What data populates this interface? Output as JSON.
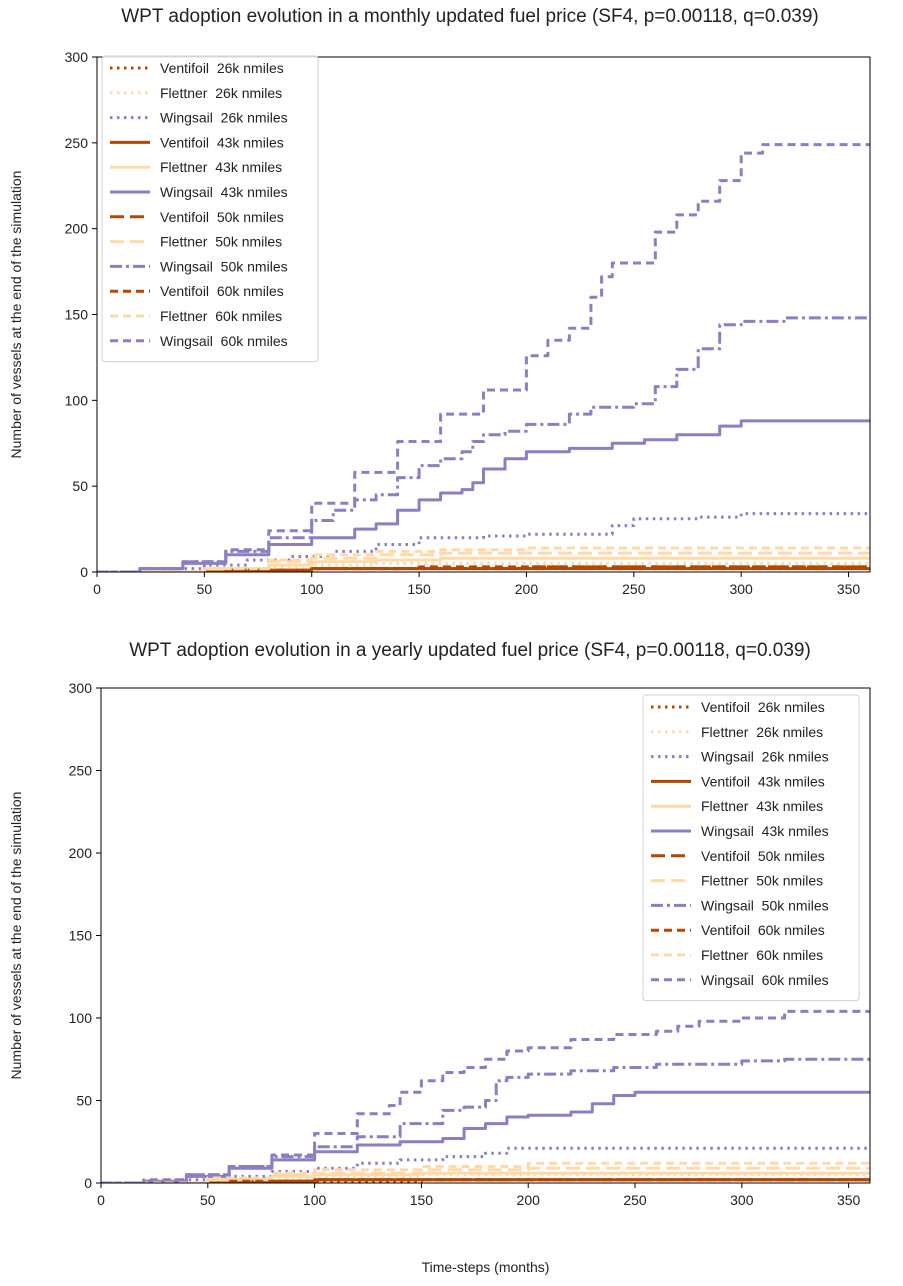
{
  "chart_data": [
    {
      "type": "line",
      "title": "WPT adoption evolution in a monthly updated fuel price (SF4, p=0.00118, q=0.039)",
      "xlabel": "",
      "ylabel": "Number of vessels at the end of the simulation",
      "xlim": [
        0,
        360
      ],
      "ylim": [
        0,
        300
      ],
      "xticks": [
        0,
        50,
        100,
        150,
        200,
        250,
        300,
        350
      ],
      "yticks": [
        0,
        50,
        100,
        150,
        200,
        250,
        300
      ],
      "grid": false,
      "legend_position": "top-left",
      "series": [
        {
          "name": "Ventifoil  26k nmiles",
          "color": "#b34700",
          "style": "dotted",
          "x": [
            0,
            60,
            100,
            150,
            200,
            250,
            300,
            360
          ],
          "y": [
            0,
            1,
            2,
            2,
            2,
            2,
            2,
            2
          ]
        },
        {
          "name": "Flettner  26k nmiles",
          "color": "#ffd9a8",
          "style": "dotted",
          "x": [
            0,
            50,
            80,
            100,
            130,
            160,
            200,
            250,
            300,
            360
          ],
          "y": [
            0,
            1,
            3,
            4,
            5,
            5,
            5,
            5,
            5,
            5
          ]
        },
        {
          "name": "Wingsail  26k nmiles",
          "color": "#8b7fc4",
          "style": "dotted",
          "x": [
            0,
            30,
            50,
            70,
            90,
            110,
            130,
            150,
            180,
            200,
            230,
            240,
            250,
            280,
            300,
            360
          ],
          "y": [
            0,
            2,
            4,
            7,
            9,
            12,
            16,
            20,
            21,
            22,
            22,
            27,
            31,
            32,
            34,
            34
          ]
        },
        {
          "name": "Ventifoil  43k nmiles",
          "color": "#b34700",
          "style": "solid",
          "x": [
            0,
            60,
            100,
            150,
            200,
            360
          ],
          "y": [
            0,
            1,
            2,
            2,
            2,
            2
          ]
        },
        {
          "name": "Flettner  43k nmiles",
          "color": "#ffd9a8",
          "style": "solid",
          "x": [
            0,
            50,
            80,
            100,
            130,
            160,
            200,
            250,
            360
          ],
          "y": [
            0,
            2,
            4,
            6,
            7,
            8,
            8,
            8,
            8
          ]
        },
        {
          "name": "Wingsail  43k nmiles",
          "color": "#8b7fc4",
          "style": "solid",
          "x": [
            0,
            20,
            40,
            60,
            80,
            100,
            120,
            130,
            140,
            150,
            160,
            170,
            175,
            180,
            190,
            200,
            220,
            240,
            255,
            270,
            290,
            300,
            360
          ],
          "y": [
            0,
            2,
            5,
            10,
            16,
            20,
            25,
            28,
            36,
            42,
            46,
            48,
            52,
            60,
            66,
            70,
            72,
            75,
            77,
            80,
            85,
            88,
            88
          ]
        },
        {
          "name": "Ventifoil  50k nmiles",
          "color": "#b34700",
          "style": "longdash",
          "x": [
            0,
            60,
            100,
            150,
            200,
            360
          ],
          "y": [
            0,
            1,
            2,
            2,
            3,
            3
          ]
        },
        {
          "name": "Flettner  50k nmiles",
          "color": "#ffd9a8",
          "style": "longdash",
          "x": [
            0,
            50,
            80,
            100,
            130,
            160,
            200,
            250,
            360
          ],
          "y": [
            0,
            2,
            6,
            8,
            10,
            11,
            11,
            11,
            11
          ]
        },
        {
          "name": "Wingsail  50k nmiles",
          "color": "#8b7fc4",
          "style": "dashdot",
          "x": [
            0,
            20,
            40,
            60,
            80,
            100,
            110,
            120,
            130,
            140,
            150,
            160,
            170,
            175,
            180,
            190,
            200,
            220,
            230,
            250,
            260,
            270,
            280,
            290,
            300,
            320,
            360
          ],
          "y": [
            0,
            2,
            6,
            12,
            20,
            30,
            36,
            42,
            45,
            55,
            62,
            66,
            70,
            76,
            80,
            82,
            86,
            92,
            96,
            98,
            108,
            118,
            130,
            144,
            146,
            148,
            148
          ]
        },
        {
          "name": "Ventifoil  60k nmiles",
          "color": "#b34700",
          "style": "dashed",
          "x": [
            0,
            60,
            100,
            150,
            200,
            360
          ],
          "y": [
            0,
            1,
            2,
            3,
            3,
            3
          ]
        },
        {
          "name": "Flettner  60k nmiles",
          "color": "#ffd9a8",
          "style": "dashed",
          "x": [
            0,
            50,
            80,
            100,
            130,
            160,
            200,
            250,
            360
          ],
          "y": [
            0,
            2,
            7,
            10,
            12,
            13,
            14,
            14,
            14
          ]
        },
        {
          "name": "Wingsail  60k nmiles",
          "color": "#8b7fc4",
          "style": "dashed",
          "x": [
            0,
            20,
            40,
            60,
            80,
            100,
            120,
            140,
            160,
            180,
            200,
            210,
            220,
            230,
            235,
            240,
            260,
            270,
            280,
            290,
            300,
            310,
            360
          ],
          "y": [
            0,
            2,
            6,
            13,
            24,
            40,
            58,
            76,
            92,
            106,
            126,
            135,
            142,
            160,
            172,
            180,
            198,
            208,
            216,
            228,
            244,
            249,
            249
          ]
        }
      ]
    },
    {
      "type": "line",
      "title": "WPT adoption evolution in a yearly updated fuel price (SF4, p=0.00118, q=0.039)",
      "xlabel": "Time-steps (months)",
      "ylabel": "Number of vessels at the end of the simulation",
      "xlim": [
        0,
        360
      ],
      "ylim": [
        0,
        300
      ],
      "xticks": [
        0,
        50,
        100,
        150,
        200,
        250,
        300,
        350
      ],
      "yticks": [
        0,
        50,
        100,
        150,
        200,
        250,
        300
      ],
      "grid": false,
      "legend_position": "top-right",
      "series": [
        {
          "name": "Ventifoil  26k nmiles",
          "color": "#b34700",
          "style": "dotted",
          "x": [
            0,
            60,
            100,
            150,
            200,
            360
          ],
          "y": [
            0,
            1,
            1,
            2,
            2,
            2
          ]
        },
        {
          "name": "Flettner  26k nmiles",
          "color": "#ffd9a8",
          "style": "dotted",
          "x": [
            0,
            50,
            80,
            100,
            150,
            200,
            360
          ],
          "y": [
            0,
            1,
            3,
            4,
            5,
            5,
            5
          ]
        },
        {
          "name": "Wingsail  26k nmiles",
          "color": "#8b7fc4",
          "style": "dotted",
          "x": [
            0,
            30,
            60,
            80,
            100,
            120,
            140,
            160,
            180,
            190,
            200,
            360
          ],
          "y": [
            0,
            2,
            4,
            7,
            9,
            12,
            14,
            16,
            18,
            21,
            21,
            21
          ]
        },
        {
          "name": "Ventifoil  43k nmiles",
          "color": "#b34700",
          "style": "solid",
          "x": [
            0,
            60,
            100,
            150,
            360
          ],
          "y": [
            0,
            1,
            2,
            2,
            2
          ]
        },
        {
          "name": "Flettner  43k nmiles",
          "color": "#ffd9a8",
          "style": "solid",
          "x": [
            0,
            50,
            80,
            100,
            150,
            200,
            360
          ],
          "y": [
            0,
            2,
            4,
            5,
            6,
            6,
            6
          ]
        },
        {
          "name": "Wingsail  43k nmiles",
          "color": "#8b7fc4",
          "style": "solid",
          "x": [
            0,
            20,
            40,
            60,
            80,
            100,
            120,
            140,
            160,
            170,
            180,
            190,
            200,
            220,
            230,
            240,
            250,
            360
          ],
          "y": [
            0,
            1,
            4,
            9,
            14,
            19,
            23,
            25,
            27,
            33,
            36,
            40,
            41,
            43,
            48,
            53,
            55,
            55
          ]
        },
        {
          "name": "Ventifoil  50k nmiles",
          "color": "#b34700",
          "style": "longdash",
          "x": [
            0,
            60,
            100,
            150,
            360
          ],
          "y": [
            0,
            1,
            2,
            2,
            2
          ]
        },
        {
          "name": "Flettner  50k nmiles",
          "color": "#ffd9a8",
          "style": "longdash",
          "x": [
            0,
            50,
            80,
            100,
            150,
            200,
            360
          ],
          "y": [
            0,
            2,
            5,
            6,
            8,
            9,
            9
          ]
        },
        {
          "name": "Wingsail  50k nmiles",
          "color": "#8b7fc4",
          "style": "dashdot",
          "x": [
            0,
            20,
            40,
            60,
            80,
            100,
            120,
            140,
            160,
            170,
            180,
            185,
            190,
            200,
            220,
            240,
            260,
            280,
            300,
            320,
            360
          ],
          "y": [
            0,
            1,
            5,
            10,
            16,
            22,
            28,
            36,
            44,
            46,
            50,
            62,
            64,
            66,
            68,
            70,
            72,
            72,
            74,
            75,
            75
          ]
        },
        {
          "name": "Ventifoil  60k nmiles",
          "color": "#b34700",
          "style": "dashed",
          "x": [
            0,
            60,
            100,
            150,
            360
          ],
          "y": [
            0,
            1,
            2,
            2,
            2
          ]
        },
        {
          "name": "Flettner  60k nmiles",
          "color": "#ffd9a8",
          "style": "dashed",
          "x": [
            0,
            50,
            80,
            100,
            150,
            200,
            360
          ],
          "y": [
            0,
            3,
            6,
            8,
            10,
            12,
            12
          ]
        },
        {
          "name": "Wingsail  60k nmiles",
          "color": "#8b7fc4",
          "style": "dashed",
          "x": [
            0,
            20,
            40,
            60,
            80,
            100,
            120,
            135,
            140,
            150,
            160,
            170,
            180,
            190,
            200,
            220,
            240,
            260,
            270,
            280,
            300,
            320,
            360
          ],
          "y": [
            0,
            2,
            5,
            10,
            17,
            30,
            42,
            47,
            55,
            62,
            67,
            70,
            75,
            80,
            82,
            87,
            90,
            92,
            95,
            98,
            100,
            104,
            104
          ]
        }
      ]
    }
  ]
}
